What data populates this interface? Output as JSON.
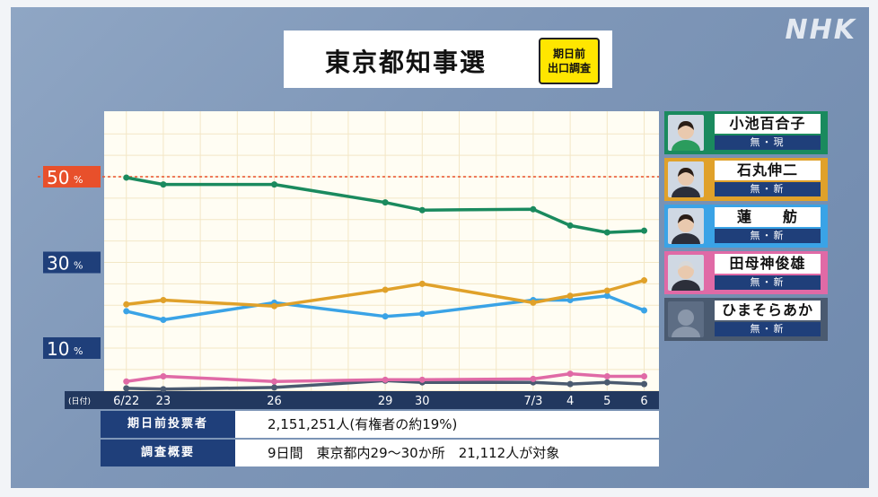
{
  "logo": "NHK",
  "title": "東京都知事選",
  "badge": [
    "期日前",
    "出口調査"
  ],
  "chart_data": {
    "type": "line",
    "x_label_prefix": "(日付)",
    "x": [
      "6/22",
      "23",
      "26",
      "29",
      "30",
      "7/3",
      "4",
      "5",
      "6"
    ],
    "x_days": [
      22,
      23,
      26,
      29,
      30,
      33,
      34,
      35,
      36
    ],
    "y_ticks": [
      {
        "value": 50,
        "label": "50",
        "unit": "%"
      },
      {
        "value": 30,
        "label": "30",
        "unit": "%"
      },
      {
        "value": 10,
        "label": "10",
        "unit": "%"
      }
    ],
    "reference_line": 50,
    "grid": true,
    "series": [
      {
        "name": "小池百合子",
        "color": "#1a8a5e",
        "values": [
          49.8,
          48.2,
          48.2,
          44.0,
          42.2,
          42.4,
          38.6,
          37.0,
          37.4
        ]
      },
      {
        "name": "石丸伸二",
        "color": "#e0a12a",
        "values": [
          20.2,
          21.2,
          19.8,
          23.6,
          25.0,
          20.6,
          22.2,
          23.4,
          25.8
        ]
      },
      {
        "name": "蓮舫",
        "color": "#3aa3e6",
        "values": [
          18.6,
          16.6,
          20.6,
          17.4,
          18.0,
          21.2,
          21.2,
          22.2,
          18.8
        ]
      },
      {
        "name": "田母神俊雄",
        "color": "#e06aa6",
        "values": [
          2.2,
          3.4,
          2.2,
          2.6,
          2.6,
          2.8,
          4.0,
          3.4,
          3.4
        ]
      },
      {
        "name": "ひまそらあかね",
        "color": "#4a5a70",
        "values": [
          0.6,
          0.4,
          0.8,
          2.4,
          2.0,
          2.0,
          1.6,
          2.0,
          1.6
        ]
      }
    ]
  },
  "candidates": [
    {
      "name": "小池百合子",
      "party": "無・現",
      "color": "#1a8a5e"
    },
    {
      "name": "石丸伸二",
      "party": "無・新",
      "color": "#e0a12a"
    },
    {
      "name": "蓮　　舫",
      "party": "無・新",
      "color": "#3aa3e6"
    },
    {
      "name": "田母神俊雄",
      "party": "無・新",
      "color": "#e06aa6"
    },
    {
      "name": "ひまそらあかね",
      "party": "無・新",
      "color": "#4a5a70"
    }
  ],
  "info": {
    "voters_label": "期日前投票者",
    "voters_value": "2,151,251人(有権者の約19%)",
    "survey_label": "調査概要",
    "survey_value": "9日間　東京都内29～30か所　21,112人が対象"
  }
}
